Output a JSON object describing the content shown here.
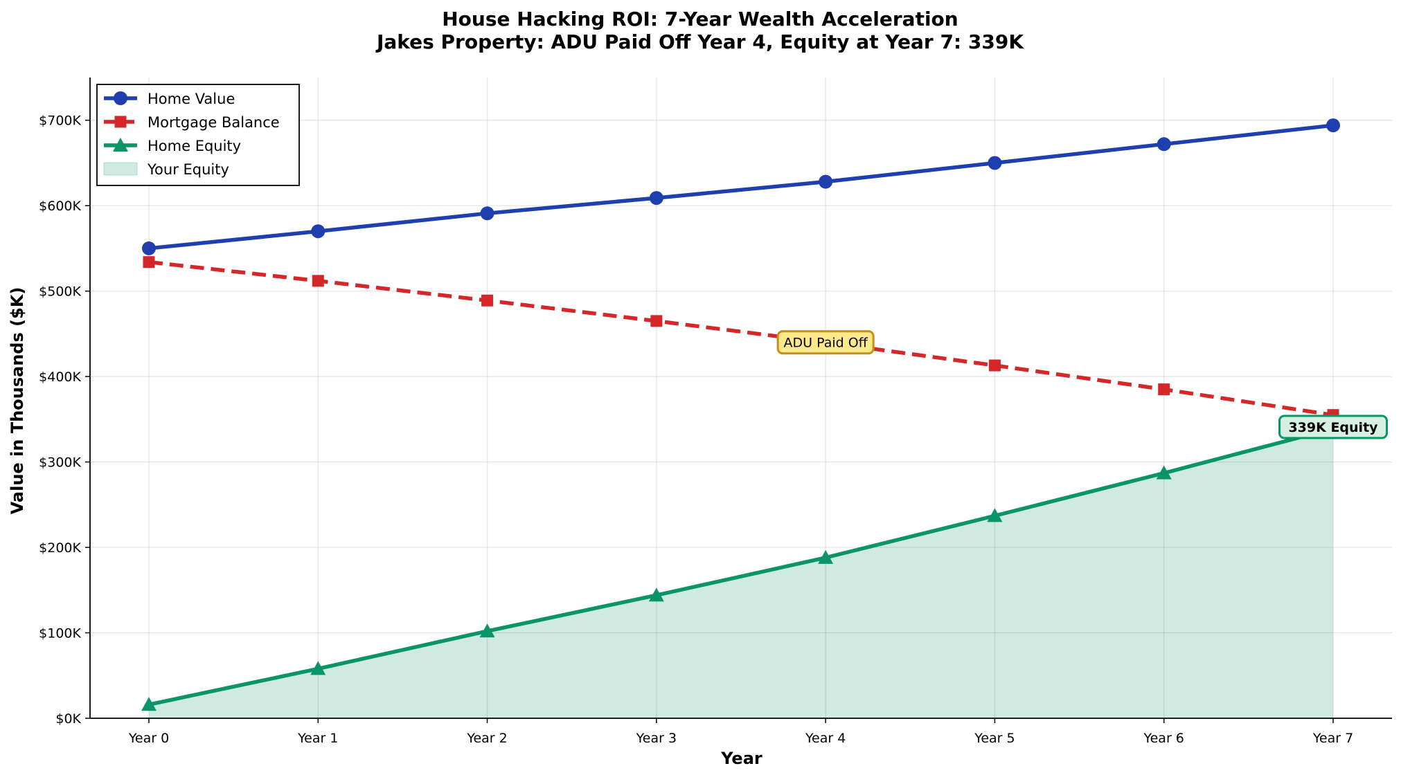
{
  "chart_data": {
    "type": "line",
    "title": "House Hacking ROI: 7-Year Wealth Acceleration",
    "subtitle": "Jakes Property: ADU Paid Off Year 4, Equity at Year 7: 339K",
    "xlabel": "Year",
    "ylabel": "Value in Thousands ($K)",
    "categories": [
      "Year 0",
      "Year 1",
      "Year 2",
      "Year 3",
      "Year 4",
      "Year 5",
      "Year 6",
      "Year 7"
    ],
    "ylim": [
      0,
      750
    ],
    "yticks": [
      0,
      100,
      200,
      300,
      400,
      500,
      600,
      700
    ],
    "ytick_labels": [
      "$0K",
      "$100K",
      "$200K",
      "$300K",
      "$400K",
      "$500K",
      "$600K",
      "$700K"
    ],
    "grid": true,
    "legend_position": "top-left",
    "series": [
      {
        "name": "Home Value",
        "values": [
          550,
          570,
          591,
          609,
          628,
          650,
          672,
          694
        ],
        "color": "#1f3fae",
        "marker": "circle",
        "style": "solid"
      },
      {
        "name": "Mortgage Balance",
        "values": [
          534,
          512,
          489,
          465,
          440,
          413,
          385,
          355
        ],
        "color": "#d62728",
        "marker": "square",
        "style": "dashed"
      },
      {
        "name": "Home Equity",
        "values": [
          16,
          58,
          102,
          144,
          188,
          237,
          287,
          339
        ],
        "color": "#0a9468",
        "marker": "triangle",
        "style": "solid"
      }
    ],
    "area": {
      "name": "Your Equity",
      "color": "#0a9468",
      "opacity": 0.2
    },
    "annotations": [
      {
        "text": "ADU Paid Off",
        "x": "Year 4",
        "y": 440,
        "bg": "#fde98a",
        "border": "#c78d1a"
      },
      {
        "text": "339K Equity",
        "x": "Year 7",
        "y": 341,
        "bg": "#d7f0e4",
        "border": "#0a9468"
      }
    ]
  }
}
